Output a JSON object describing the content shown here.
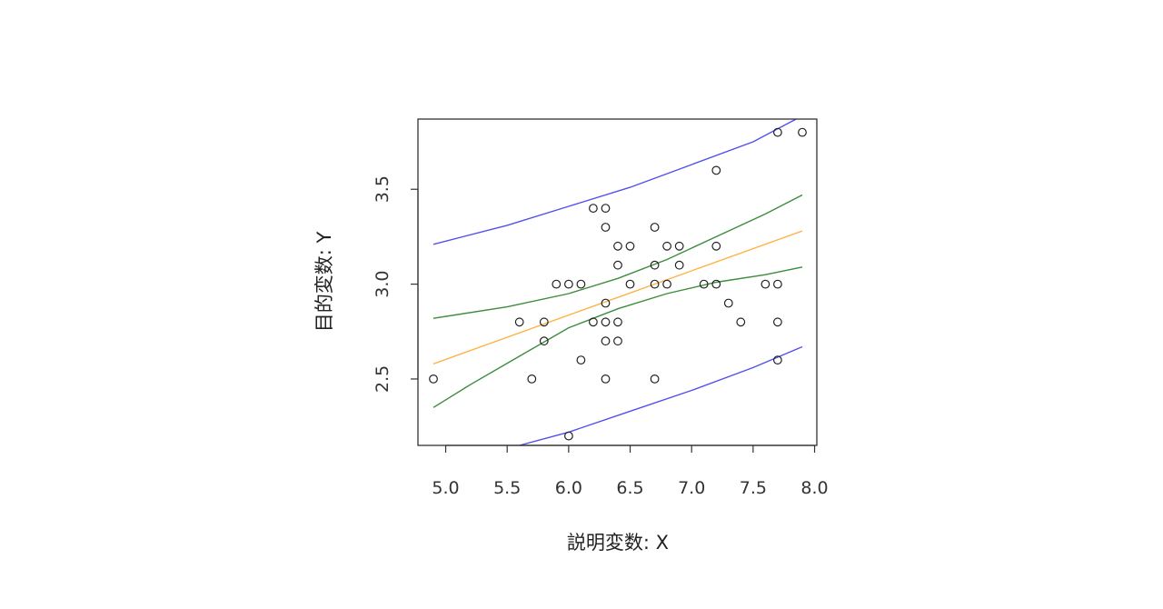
{
  "chart_data": {
    "type": "scatter",
    "title": "",
    "xlabel": "説明変数: X",
    "ylabel": "目的変数: Y",
    "xlim": [
      4.9,
      7.9
    ],
    "ylim": [
      2.15,
      3.87
    ],
    "x_ticks": [
      5.0,
      5.5,
      6.0,
      6.5,
      7.0,
      7.5,
      8.0
    ],
    "x_tick_labels": [
      "5.0",
      "5.5",
      "6.0",
      "6.5",
      "7.0",
      "7.5",
      "8.0"
    ],
    "y_ticks": [
      2.5,
      3.0,
      3.5
    ],
    "y_tick_labels": [
      "2.5",
      "3.0",
      "3.5"
    ],
    "grid": false,
    "points": [
      [
        4.9,
        2.5
      ],
      [
        5.6,
        2.8
      ],
      [
        5.7,
        2.5
      ],
      [
        5.8,
        2.8
      ],
      [
        5.8,
        2.7
      ],
      [
        5.9,
        3.0
      ],
      [
        6.0,
        3.0
      ],
      [
        6.0,
        2.2
      ],
      [
        6.1,
        3.0
      ],
      [
        6.1,
        2.6
      ],
      [
        6.2,
        3.4
      ],
      [
        6.2,
        2.8
      ],
      [
        6.3,
        3.4
      ],
      [
        6.3,
        3.3
      ],
      [
        6.3,
        2.9
      ],
      [
        6.3,
        2.8
      ],
      [
        6.3,
        2.7
      ],
      [
        6.3,
        2.5
      ],
      [
        6.4,
        3.2
      ],
      [
        6.4,
        3.1
      ],
      [
        6.4,
        2.8
      ],
      [
        6.4,
        2.7
      ],
      [
        6.5,
        3.2
      ],
      [
        6.5,
        3.0
      ],
      [
        6.7,
        3.3
      ],
      [
        6.7,
        3.1
      ],
      [
        6.7,
        3.0
      ],
      [
        6.7,
        2.5
      ],
      [
        6.8,
        3.2
      ],
      [
        6.8,
        3.0
      ],
      [
        6.9,
        3.2
      ],
      [
        6.9,
        3.1
      ],
      [
        7.1,
        3.0
      ],
      [
        7.2,
        3.6
      ],
      [
        7.2,
        3.2
      ],
      [
        7.2,
        3.0
      ],
      [
        7.3,
        2.9
      ],
      [
        7.4,
        2.8
      ],
      [
        7.6,
        3.0
      ],
      [
        7.7,
        3.8
      ],
      [
        7.7,
        3.0
      ],
      [
        7.7,
        2.8
      ],
      [
        7.7,
        2.6
      ],
      [
        7.9,
        3.8
      ]
    ],
    "fit_line": {
      "color": "#ffb347",
      "points": [
        [
          4.9,
          2.58
        ],
        [
          6.4,
          2.93
        ],
        [
          7.9,
          3.28
        ]
      ]
    },
    "confidence_band": {
      "color": "#3c8c3c",
      "upper": [
        [
          4.9,
          2.82
        ],
        [
          5.5,
          2.88
        ],
        [
          6.0,
          2.95
        ],
        [
          6.4,
          3.03
        ],
        [
          6.8,
          3.13
        ],
        [
          7.2,
          3.25
        ],
        [
          7.6,
          3.37
        ],
        [
          7.9,
          3.47
        ]
      ],
      "lower": [
        [
          4.9,
          2.35
        ],
        [
          5.2,
          2.47
        ],
        [
          5.6,
          2.62
        ],
        [
          6.0,
          2.77
        ],
        [
          6.4,
          2.87
        ],
        [
          6.8,
          2.95
        ],
        [
          7.2,
          3.01
        ],
        [
          7.6,
          3.05
        ],
        [
          7.9,
          3.09
        ]
      ]
    },
    "prediction_band": {
      "color": "#5050ee",
      "upper": [
        [
          4.9,
          3.21
        ],
        [
          5.5,
          3.31
        ],
        [
          6.0,
          3.41
        ],
        [
          6.5,
          3.51
        ],
        [
          7.0,
          3.63
        ],
        [
          7.5,
          3.75
        ],
        [
          7.85,
          3.87
        ]
      ],
      "lower": [
        [
          5.6,
          2.15
        ],
        [
          6.0,
          2.22
        ],
        [
          6.5,
          2.33
        ],
        [
          7.0,
          2.44
        ],
        [
          7.5,
          2.56
        ],
        [
          7.9,
          2.67
        ]
      ]
    }
  }
}
